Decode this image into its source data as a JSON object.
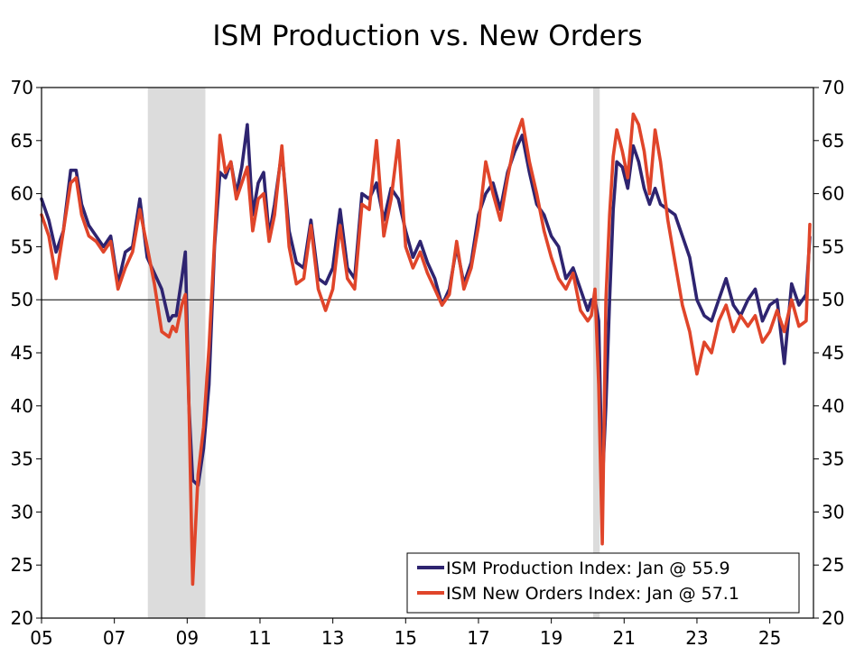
{
  "chart_data": {
    "type": "line",
    "title": "ISM Production vs. New Orders",
    "xlabel": "",
    "ylabel": "",
    "xlim": [
      2005.0,
      2026.2
    ],
    "ylim": [
      20,
      70
    ],
    "y_ticks": [
      20,
      25,
      30,
      35,
      40,
      45,
      50,
      55,
      60,
      65,
      70
    ],
    "x_ticks": [
      {
        "value": 2005,
        "label": "05"
      },
      {
        "value": 2007,
        "label": "07"
      },
      {
        "value": 2009,
        "label": "09"
      },
      {
        "value": 2011,
        "label": "11"
      },
      {
        "value": 2013,
        "label": "13"
      },
      {
        "value": 2015,
        "label": "15"
      },
      {
        "value": 2017,
        "label": "17"
      },
      {
        "value": 2019,
        "label": "19"
      },
      {
        "value": 2021,
        "label": "21"
      },
      {
        "value": 2023,
        "label": "23"
      },
      {
        "value": 2025,
        "label": "25"
      }
    ],
    "reference_line": 50,
    "recessions": [
      [
        2007.92,
        2009.5
      ],
      [
        2020.15,
        2020.33
      ]
    ],
    "legend_position": "bottom-right",
    "series": [
      {
        "name": "ISM Production Index: Jan @ 55.9",
        "color": "#2e2470",
        "x": [
          2005.0,
          2005.2,
          2005.4,
          2005.6,
          2005.8,
          2005.95,
          2006.1,
          2006.3,
          2006.5,
          2006.7,
          2006.9,
          2007.1,
          2007.3,
          2007.5,
          2007.7,
          2007.9,
          2008.1,
          2008.3,
          2008.5,
          2008.6,
          2008.7,
          2008.85,
          2008.95,
          2009.05,
          2009.15,
          2009.3,
          2009.45,
          2009.6,
          2009.75,
          2009.9,
          2010.05,
          2010.2,
          2010.35,
          2010.5,
          2010.65,
          2010.8,
          2010.95,
          2011.1,
          2011.25,
          2011.4,
          2011.6,
          2011.8,
          2012.0,
          2012.2,
          2012.4,
          2012.6,
          2012.8,
          2013.0,
          2013.2,
          2013.4,
          2013.6,
          2013.8,
          2014.0,
          2014.2,
          2014.4,
          2014.6,
          2014.8,
          2015.0,
          2015.2,
          2015.4,
          2015.6,
          2015.8,
          2016.0,
          2016.2,
          2016.4,
          2016.6,
          2016.8,
          2017.0,
          2017.2,
          2017.4,
          2017.6,
          2017.8,
          2018.0,
          2018.2,
          2018.4,
          2018.6,
          2018.8,
          2019.0,
          2019.2,
          2019.4,
          2019.6,
          2019.8,
          2020.0,
          2020.1,
          2020.2,
          2020.3,
          2020.4,
          2020.5,
          2020.6,
          2020.7,
          2020.8,
          2020.95,
          2021.1,
          2021.25,
          2021.4,
          2021.55,
          2021.7,
          2021.85,
          2022.0,
          2022.2,
          2022.4,
          2022.6,
          2022.8,
          2023.0,
          2023.2,
          2023.4,
          2023.6,
          2023.8,
          2024.0,
          2024.2,
          2024.4,
          2024.6,
          2024.8,
          2025.0,
          2025.2,
          2025.4,
          2025.6,
          2025.8,
          2026.0,
          2026.1
        ],
        "values": [
          59.5,
          57.5,
          54.5,
          56.5,
          62.2,
          62.2,
          59.0,
          57.0,
          56.0,
          55.0,
          56.0,
          51.5,
          54.5,
          55.0,
          59.5,
          54.0,
          52.5,
          51.0,
          48.0,
          48.5,
          48.5,
          52.0,
          54.5,
          40.0,
          33.0,
          32.5,
          36.0,
          42.0,
          55.0,
          62.0,
          61.5,
          63.0,
          60.0,
          62.5,
          66.5,
          58.0,
          61.0,
          62.0,
          56.0,
          59.0,
          64.0,
          56.5,
          53.5,
          53.0,
          57.5,
          52.0,
          51.5,
          53.0,
          58.5,
          53.0,
          52.0,
          60.0,
          59.5,
          61.0,
          57.5,
          60.5,
          59.5,
          56.5,
          54.0,
          55.5,
          53.5,
          52.0,
          49.5,
          51.0,
          55.0,
          51.5,
          53.5,
          58.0,
          60.0,
          61.0,
          58.5,
          62.0,
          64.0,
          65.5,
          62.0,
          59.0,
          58.0,
          56.0,
          55.0,
          52.0,
          53.0,
          51.0,
          49.0,
          50.0,
          50.0,
          48.0,
          32.5,
          40.0,
          50.0,
          58.5,
          63.0,
          62.5,
          60.5,
          64.5,
          63.0,
          60.5,
          59.0,
          60.5,
          59.0,
          58.5,
          58.0,
          56.0,
          54.0,
          50.0,
          48.5,
          48.0,
          50.0,
          52.0,
          49.5,
          48.5,
          50.0,
          51.0,
          48.0,
          49.5,
          50.0,
          44.0,
          51.5,
          49.5,
          50.5,
          55.9
        ]
      },
      {
        "name": "ISM New Orders Index: Jan @ 57.1",
        "color": "#e0452a",
        "x": [
          2005.0,
          2005.2,
          2005.4,
          2005.6,
          2005.8,
          2005.95,
          2006.1,
          2006.3,
          2006.5,
          2006.7,
          2006.9,
          2007.1,
          2007.3,
          2007.5,
          2007.7,
          2007.9,
          2008.1,
          2008.3,
          2008.5,
          2008.6,
          2008.7,
          2008.85,
          2008.95,
          2009.05,
          2009.15,
          2009.3,
          2009.45,
          2009.6,
          2009.75,
          2009.9,
          2010.05,
          2010.2,
          2010.35,
          2010.5,
          2010.65,
          2010.8,
          2010.95,
          2011.1,
          2011.25,
          2011.4,
          2011.6,
          2011.8,
          2012.0,
          2012.2,
          2012.4,
          2012.6,
          2012.8,
          2013.0,
          2013.2,
          2013.4,
          2013.6,
          2013.8,
          2014.0,
          2014.2,
          2014.4,
          2014.6,
          2014.8,
          2015.0,
          2015.2,
          2015.4,
          2015.6,
          2015.8,
          2016.0,
          2016.2,
          2016.4,
          2016.6,
          2016.8,
          2017.0,
          2017.2,
          2017.4,
          2017.6,
          2017.8,
          2018.0,
          2018.2,
          2018.4,
          2018.6,
          2018.8,
          2019.0,
          2019.2,
          2019.4,
          2019.6,
          2019.8,
          2020.0,
          2020.1,
          2020.2,
          2020.3,
          2020.4,
          2020.5,
          2020.6,
          2020.7,
          2020.8,
          2020.95,
          2021.1,
          2021.25,
          2021.4,
          2021.55,
          2021.7,
          2021.85,
          2022.0,
          2022.2,
          2022.4,
          2022.6,
          2022.8,
          2023.0,
          2023.2,
          2023.4,
          2023.6,
          2023.8,
          2024.0,
          2024.2,
          2024.4,
          2024.6,
          2024.8,
          2025.0,
          2025.2,
          2025.4,
          2025.6,
          2025.8,
          2026.0,
          2026.1
        ],
        "values": [
          58.0,
          56.0,
          52.0,
          56.5,
          61.0,
          61.5,
          58.0,
          56.0,
          55.5,
          54.5,
          55.5,
          51.0,
          53.0,
          54.5,
          58.5,
          55.0,
          51.5,
          47.0,
          46.5,
          47.5,
          47.0,
          49.5,
          50.5,
          40.0,
          23.2,
          33.5,
          38.0,
          45.5,
          55.5,
          65.5,
          62.0,
          63.0,
          59.5,
          61.0,
          62.5,
          56.5,
          59.5,
          60.0,
          55.5,
          58.0,
          64.5,
          55.0,
          51.5,
          52.0,
          57.0,
          51.0,
          49.0,
          51.0,
          57.0,
          52.0,
          51.0,
          59.0,
          58.5,
          65.0,
          56.0,
          59.5,
          65.0,
          55.0,
          53.0,
          54.5,
          52.5,
          51.0,
          49.5,
          50.5,
          55.5,
          51.0,
          53.0,
          57.0,
          63.0,
          60.0,
          57.5,
          61.5,
          65.0,
          67.0,
          63.0,
          60.0,
          56.5,
          54.0,
          52.0,
          51.0,
          52.5,
          49.0,
          48.0,
          48.5,
          51.0,
          42.0,
          27.0,
          50.0,
          58.0,
          63.5,
          66.0,
          64.0,
          61.5,
          67.5,
          66.5,
          64.0,
          60.0,
          66.0,
          63.0,
          57.5,
          53.5,
          49.5,
          47.0,
          43.0,
          46.0,
          45.0,
          48.0,
          49.5,
          47.0,
          48.5,
          47.5,
          48.5,
          46.0,
          47.0,
          49.0,
          47.0,
          50.0,
          47.5,
          48.0,
          57.1
        ]
      }
    ]
  }
}
